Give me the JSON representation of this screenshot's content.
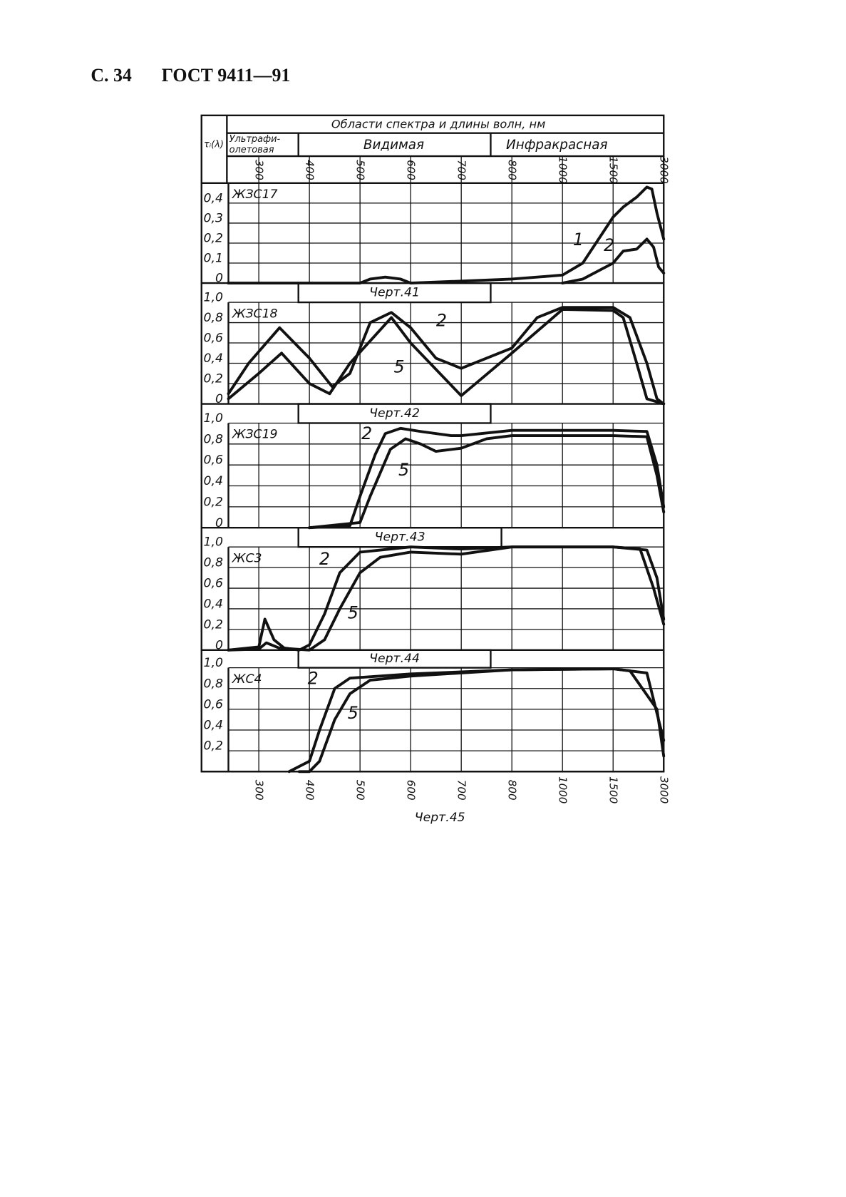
{
  "header": {
    "page": "С. 34",
    "standard": "ГОСТ 9411—91"
  },
  "table_header": {
    "title": "Области спектра и длины волн, нм",
    "y_label": "τᵢ(λ)",
    "ultraviolet": [
      "Ультрафи-",
      "олетовая"
    ],
    "visible": "Видимая",
    "infrared": "Инфракрасная"
  },
  "chart_data": [
    {
      "type": "line",
      "title": "ЖЗС17",
      "caption": "Черт.41",
      "xlim": [
        240,
        3000
      ],
      "xticks": [
        300,
        400,
        500,
        600,
        700,
        800,
        1000,
        1500,
        3000
      ],
      "ylim": [
        0,
        0.5
      ],
      "yticks": [
        {
          "value": 0.4,
          "label": "0,4"
        },
        {
          "value": 0.3,
          "label": "0,3"
        },
        {
          "value": 0.2,
          "label": "0,2"
        },
        {
          "value": 0.1,
          "label": "0,1"
        },
        0
      ],
      "grid": true,
      "series": [
        {
          "name": "1",
          "color": "#111111",
          "x": [
            240,
            400,
            500,
            520,
            550,
            580,
            600,
            700,
            800,
            1000,
            1200,
            1500,
            1800,
            2200,
            2500,
            2650,
            2800,
            3000
          ],
          "values": [
            0,
            0,
            0,
            0.02,
            0.03,
            0.02,
            0,
            0.01,
            0.02,
            0.04,
            0.1,
            0.33,
            0.38,
            0.43,
            0.48,
            0.47,
            0.35,
            0.22
          ]
        },
        {
          "name": "2",
          "color": "#111111",
          "x": [
            1000,
            1200,
            1500,
            1800,
            2200,
            2500,
            2700,
            2850,
            3000
          ],
          "values": [
            0,
            0.02,
            0.1,
            0.16,
            0.17,
            0.22,
            0.18,
            0.08,
            0.05
          ]
        }
      ]
    },
    {
      "type": "line",
      "title": "ЖЗС18",
      "caption": "Черт.42",
      "xlim": [
        240,
        3000
      ],
      "xticks": [
        300,
        400,
        500,
        600,
        700,
        800,
        1000,
        1500,
        3000
      ],
      "ylim": [
        0,
        1
      ],
      "yticks": [
        {
          "value": 1,
          "label": "1,0"
        },
        {
          "value": 0.8,
          "label": "0,8"
        },
        {
          "value": 0.6,
          "label": "0,6"
        },
        {
          "value": 0.4,
          "label": "0,4"
        },
        {
          "value": 0.2,
          "label": "0,2"
        },
        0
      ],
      "grid": true,
      "series": [
        {
          "name": "2",
          "color": "#111111",
          "x": [
            240,
            280,
            341,
            400,
            445,
            480,
            520,
            562,
            600,
            650,
            700,
            800,
            900,
            1000,
            1500,
            2000,
            2500,
            2800,
            3000
          ],
          "values": [
            0.1,
            0.4,
            0.75,
            0.45,
            0.17,
            0.3,
            0.8,
            0.9,
            0.75,
            0.45,
            0.35,
            0.55,
            0.85,
            0.95,
            0.95,
            0.85,
            0.4,
            0.05,
            0
          ]
        },
        {
          "name": "5",
          "color": "#111111",
          "x": [
            240,
            300,
            345,
            400,
            440,
            480,
            562,
            600,
            700,
            800,
            1000,
            1500,
            1800,
            2200,
            2500,
            3000
          ],
          "values": [
            0.05,
            0.3,
            0.5,
            0.2,
            0.1,
            0.4,
            0.85,
            0.6,
            0.08,
            0.5,
            0.93,
            0.92,
            0.85,
            0.4,
            0.05,
            0
          ]
        }
      ]
    },
    {
      "type": "line",
      "title": "ЖЗС19",
      "caption": "Черт.43",
      "xlim": [
        240,
        3000
      ],
      "xticks": [
        300,
        400,
        500,
        600,
        700,
        800,
        1000,
        1500,
        3000
      ],
      "ylim": [
        0,
        1
      ],
      "yticks": [
        {
          "value": 1,
          "label": "1,0"
        },
        {
          "value": 0.8,
          "label": "0,8"
        },
        {
          "value": 0.6,
          "label": "0,6"
        },
        {
          "value": 0.4,
          "label": "0,4"
        },
        {
          "value": 0.2,
          "label": "0,2"
        },
        0
      ],
      "grid": true,
      "series": [
        {
          "name": "2",
          "color": "#111111",
          "x": [
            400,
            480,
            500,
            530,
            550,
            580,
            620,
            680,
            700,
            800,
            1000,
            1500,
            2500,
            2800,
            3000
          ],
          "values": [
            0,
            0.02,
            0.3,
            0.7,
            0.9,
            0.95,
            0.92,
            0.88,
            0.88,
            0.93,
            0.93,
            0.93,
            0.92,
            0.6,
            0.2
          ]
        },
        {
          "name": "5",
          "color": "#111111",
          "x": [
            400,
            500,
            520,
            560,
            590,
            620,
            650,
            700,
            750,
            800,
            1500,
            2500,
            2800,
            3000
          ],
          "values": [
            0,
            0.05,
            0.3,
            0.75,
            0.85,
            0.8,
            0.73,
            0.76,
            0.85,
            0.88,
            0.88,
            0.87,
            0.5,
            0.15
          ]
        }
      ]
    },
    {
      "type": "line",
      "title": "ЖС3",
      "caption": "Черт.44",
      "xlim": [
        240,
        3000
      ],
      "xticks": [
        300,
        400,
        500,
        600,
        700,
        800,
        1000,
        1500,
        3000
      ],
      "ylim": [
        0,
        1
      ],
      "yticks": [
        {
          "value": 1,
          "label": "1,0"
        },
        {
          "value": 0.8,
          "label": "0,8"
        },
        {
          "value": 0.6,
          "label": "0,6"
        },
        {
          "value": 0.4,
          "label": "0,4"
        },
        {
          "value": 0.2,
          "label": "0,2"
        },
        0
      ],
      "grid": true,
      "series": [
        {
          "name": "2",
          "color": "#111111",
          "x": [
            240,
            300,
            312,
            330,
            350,
            380,
            400,
            430,
            460,
            500,
            600,
            700,
            800,
            1500,
            2500,
            2800,
            3000
          ],
          "values": [
            0,
            0.03,
            0.3,
            0.1,
            0.02,
            0,
            0.05,
            0.35,
            0.75,
            0.95,
            1,
            0.98,
            1,
            1,
            0.97,
            0.7,
            0.3
          ]
        },
        {
          "name": "5",
          "color": "#111111",
          "x": [
            240,
            300,
            315,
            340,
            400,
            430,
            460,
            500,
            540,
            600,
            700,
            800,
            1500,
            2300,
            2700,
            3000
          ],
          "values": [
            0,
            0.01,
            0.07,
            0.02,
            0,
            0.1,
            0.4,
            0.75,
            0.9,
            0.95,
            0.93,
            1,
            1,
            0.98,
            0.6,
            0.25
          ]
        }
      ]
    },
    {
      "type": "line",
      "title": "ЖС4",
      "caption": "Черт.45",
      "xlim": [
        240,
        3000
      ],
      "xticks": [
        300,
        400,
        500,
        600,
        700,
        800,
        1000,
        1500,
        3000
      ],
      "ylim": [
        0,
        1
      ],
      "yticks": [
        {
          "value": 1,
          "label": "1,0"
        },
        {
          "value": 0.8,
          "label": "0,8"
        },
        {
          "value": 0.6,
          "label": "0,6"
        },
        {
          "value": 0.4,
          "label": "0,4"
        },
        {
          "value": 0.2,
          "label": "0,2"
        }
      ],
      "grid": true,
      "series": [
        {
          "name": "2",
          "color": "#111111",
          "x": [
            360,
            400,
            420,
            450,
            480,
            600,
            800,
            1500,
            2500,
            3000
          ],
          "values": [
            0,
            0.1,
            0.4,
            0.8,
            0.9,
            0.94,
            0.98,
            0.99,
            0.95,
            0.3
          ]
        },
        {
          "name": "5",
          "color": "#111111",
          "x": [
            380,
            400,
            420,
            450,
            480,
            520,
            600,
            800,
            1500,
            2000,
            2800,
            3000
          ],
          "values": [
            0,
            0,
            0.1,
            0.5,
            0.75,
            0.88,
            0.92,
            0.98,
            0.99,
            0.97,
            0.6,
            0.15
          ]
        }
      ]
    }
  ]
}
